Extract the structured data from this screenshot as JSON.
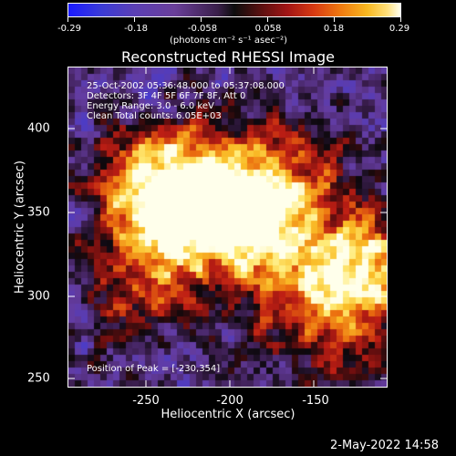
{
  "colorbar": {
    "tick_labels": [
      "-0.29",
      "-0.18",
      "-0.058",
      "0.058",
      "0.18",
      "0.29"
    ],
    "unit_label": "(photons cm⁻² s⁻¹ asec⁻²)"
  },
  "plot": {
    "title": "Reconstructed RHESSI Image",
    "annotations": {
      "time_range": "25-Oct-2002 05:36:48.000 to 05:37:08.000",
      "detectors": "Detectors: 3F 4F 5F 6F 7F 8F, Att 0",
      "energy_range": "Energy Range: 3.0 - 6.0 keV",
      "clean_counts": "Clean    Total counts: 6.05E+03",
      "peak_position": "Position of Peak = [-230,354]"
    },
    "x_axis": {
      "label": "Heliocentric X (arcsec)",
      "ticks": [
        "-250",
        "-200",
        "-150"
      ]
    },
    "y_axis": {
      "label": "Heliocentric Y (arcsec)",
      "ticks": [
        "400",
        "350",
        "300",
        "250"
      ]
    }
  },
  "footer": {
    "timestamp": "2-May-2022 14:58"
  },
  "colors": {
    "background": "#000000",
    "foreground": "#ffffff"
  }
}
